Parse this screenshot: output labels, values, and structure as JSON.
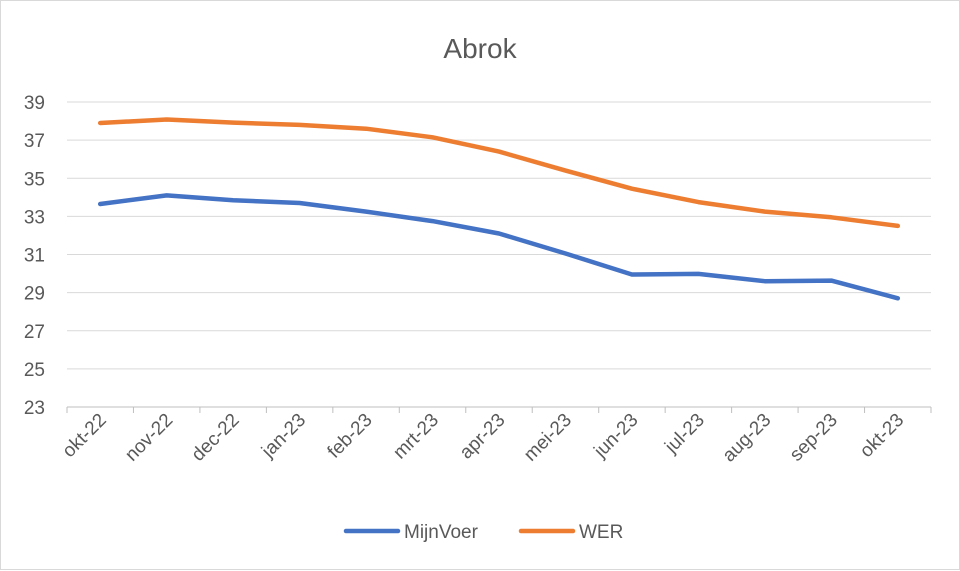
{
  "chart_data": {
    "type": "line",
    "title": "Abrok",
    "xlabel": "",
    "ylabel": "",
    "ylim": [
      23,
      39
    ],
    "yticks": [
      23,
      25,
      27,
      29,
      31,
      33,
      35,
      37,
      39
    ],
    "grid": true,
    "legend_position": "bottom",
    "categories": [
      "okt-22",
      "nov-22",
      "dec-22",
      "jan-23",
      "feb-23",
      "mrt-23",
      "apr-23",
      "mei-23",
      "jun-23",
      "jul-23",
      "aug-23",
      "sep-23",
      "okt-23"
    ],
    "series": [
      {
        "name": "MijnVoer",
        "color": "#4472C4",
        "values": [
          33.65,
          34.1,
          33.85,
          33.7,
          33.25,
          32.75,
          32.1,
          31.05,
          29.95,
          29.98,
          29.6,
          29.63,
          28.7
        ]
      },
      {
        "name": "WER",
        "color": "#ED7D31",
        "values": [
          37.9,
          38.08,
          37.92,
          37.8,
          37.6,
          37.15,
          36.4,
          35.4,
          34.45,
          33.75,
          33.25,
          32.95,
          32.5
        ]
      }
    ]
  }
}
